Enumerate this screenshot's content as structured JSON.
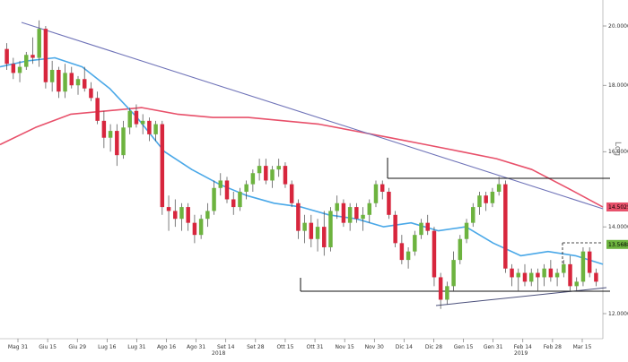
{
  "chart_data": {
    "type": "candlestick",
    "scale": "log",
    "scale_label": "Log",
    "ylim": [
      11.7,
      21.0
    ],
    "y_ticks": [
      {
        "label": "12.0000",
        "value": 12.0
      },
      {
        "label": "14.0000",
        "value": 14.0
      },
      {
        "label": "16.0000",
        "value": 16.0
      },
      {
        "label": "18.0000",
        "value": 18.0
      },
      {
        "label": "20.0000",
        "value": 20.0
      }
    ],
    "x_ticks": [
      "Mag 31",
      "Giu 15",
      "Giu 29",
      "Lug 16",
      "Lug 31",
      "Ago 16",
      "Ago 31",
      "Set 14",
      "Set 28",
      "Ott 15",
      "Ott 31",
      "Nov 15",
      "Nov 30",
      "Dic 14",
      "Dic 28",
      "Gen 15",
      "Gen 31",
      "Feb 14",
      "Feb 28",
      "Mar 15"
    ],
    "year_labels": [
      "2018",
      "2019"
    ],
    "colors": {
      "up": "#6db33f",
      "down": "#d7263d",
      "ma_short": "#4aa8e8",
      "ma_long": "#e8506a",
      "trendline": "#6f73b8",
      "channel": "#111111"
    },
    "series": [
      {
        "kind": "candles",
        "ohlc": [
          [
            19.2,
            19.4,
            18.5,
            18.7
          ],
          [
            18.7,
            18.9,
            18.2,
            18.4
          ],
          [
            18.4,
            18.8,
            18.1,
            18.6
          ],
          [
            18.6,
            19.1,
            18.5,
            19.0
          ],
          [
            19.0,
            19.6,
            18.7,
            18.9
          ],
          [
            18.9,
            20.2,
            18.6,
            19.9
          ],
          [
            19.9,
            20.0,
            17.9,
            18.1
          ],
          [
            18.1,
            18.8,
            17.8,
            18.5
          ],
          [
            18.5,
            18.6,
            17.6,
            17.8
          ],
          [
            17.8,
            18.7,
            17.6,
            18.4
          ],
          [
            18.4,
            18.6,
            17.9,
            18.0
          ],
          [
            18.0,
            18.3,
            17.7,
            18.2
          ],
          [
            18.2,
            18.6,
            17.8,
            17.9
          ],
          [
            17.9,
            18.1,
            17.5,
            17.6
          ],
          [
            17.6,
            17.8,
            16.8,
            16.9
          ],
          [
            16.9,
            17.2,
            16.1,
            16.4
          ],
          [
            16.4,
            16.8,
            16.0,
            16.6
          ],
          [
            16.6,
            16.8,
            15.6,
            15.9
          ],
          [
            15.9,
            16.9,
            15.8,
            16.7
          ],
          [
            16.7,
            17.3,
            16.5,
            17.2
          ],
          [
            17.2,
            17.4,
            16.7,
            16.8
          ],
          [
            16.8,
            17.1,
            16.5,
            16.9
          ],
          [
            16.9,
            17.0,
            16.3,
            16.5
          ],
          [
            16.5,
            16.9,
            16.3,
            16.8
          ],
          [
            16.8,
            16.9,
            14.3,
            14.5
          ],
          [
            14.5,
            14.8,
            13.9,
            14.4
          ],
          [
            14.4,
            14.7,
            14.0,
            14.2
          ],
          [
            14.2,
            14.6,
            13.9,
            14.5
          ],
          [
            14.5,
            14.6,
            13.9,
            14.1
          ],
          [
            14.1,
            14.3,
            13.6,
            13.8
          ],
          [
            13.8,
            14.3,
            13.7,
            14.2
          ],
          [
            14.2,
            14.6,
            14.0,
            14.4
          ],
          [
            14.4,
            15.2,
            14.3,
            15.0
          ],
          [
            15.0,
            15.4,
            14.8,
            15.2
          ],
          [
            15.2,
            15.3,
            14.6,
            14.7
          ],
          [
            14.7,
            14.9,
            14.3,
            14.5
          ],
          [
            14.5,
            15.0,
            14.4,
            14.9
          ],
          [
            14.9,
            15.2,
            14.7,
            15.1
          ],
          [
            15.1,
            15.5,
            14.9,
            15.4
          ],
          [
            15.4,
            15.8,
            15.2,
            15.6
          ],
          [
            15.6,
            15.8,
            15.1,
            15.2
          ],
          [
            15.2,
            15.6,
            15.0,
            15.5
          ],
          [
            15.5,
            15.8,
            15.3,
            15.6
          ],
          [
            15.6,
            15.7,
            15.0,
            15.1
          ],
          [
            15.1,
            15.2,
            14.5,
            14.6
          ],
          [
            14.6,
            14.7,
            13.7,
            13.9
          ],
          [
            13.9,
            14.3,
            13.6,
            14.1
          ],
          [
            14.1,
            14.3,
            13.5,
            13.7
          ],
          [
            13.7,
            14.2,
            13.4,
            14.0
          ],
          [
            14.0,
            14.4,
            13.3,
            13.5
          ],
          [
            13.5,
            14.5,
            13.4,
            14.4
          ],
          [
            14.4,
            14.8,
            14.2,
            14.6
          ],
          [
            14.6,
            14.7,
            14.0,
            14.1
          ],
          [
            14.1,
            14.6,
            13.9,
            14.5
          ],
          [
            14.5,
            14.6,
            14.1,
            14.2
          ],
          [
            14.2,
            14.5,
            13.9,
            14.3
          ],
          [
            14.3,
            14.7,
            14.1,
            14.6
          ],
          [
            14.6,
            15.2,
            14.5,
            15.1
          ],
          [
            15.1,
            15.2,
            14.7,
            14.9
          ],
          [
            14.9,
            15.0,
            14.2,
            14.3
          ],
          [
            14.3,
            14.4,
            13.5,
            13.6
          ],
          [
            13.6,
            13.8,
            13.1,
            13.2
          ],
          [
            13.2,
            13.5,
            13.0,
            13.4
          ],
          [
            13.4,
            13.9,
            13.3,
            13.8
          ],
          [
            13.8,
            14.2,
            13.7,
            14.1
          ],
          [
            14.1,
            14.3,
            13.8,
            13.9
          ],
          [
            13.9,
            14.0,
            12.6,
            12.8
          ],
          [
            12.8,
            12.9,
            12.1,
            12.3
          ],
          [
            12.3,
            12.7,
            12.2,
            12.6
          ],
          [
            12.6,
            13.4,
            12.5,
            13.2
          ],
          [
            13.2,
            13.8,
            13.1,
            13.7
          ],
          [
            13.7,
            14.2,
            13.6,
            14.1
          ],
          [
            14.1,
            14.6,
            14.0,
            14.5
          ],
          [
            14.5,
            14.9,
            14.3,
            14.8
          ],
          [
            14.8,
            14.9,
            14.4,
            14.6
          ],
          [
            14.6,
            15.0,
            14.5,
            14.9
          ],
          [
            14.9,
            15.3,
            14.8,
            15.1
          ],
          [
            15.1,
            15.2,
            12.9,
            13.0
          ],
          [
            13.0,
            13.1,
            12.6,
            12.8
          ],
          [
            12.8,
            13.0,
            12.5,
            12.9
          ],
          [
            12.9,
            13.1,
            12.6,
            12.7
          ],
          [
            12.7,
            13.0,
            12.6,
            12.9
          ],
          [
            12.9,
            13.0,
            12.5,
            12.8
          ],
          [
            12.8,
            13.1,
            12.6,
            13.0
          ],
          [
            13.0,
            13.2,
            12.7,
            12.8
          ],
          [
            12.8,
            13.0,
            12.6,
            12.9
          ],
          [
            12.9,
            13.2,
            12.8,
            13.1
          ],
          [
            13.1,
            13.3,
            12.5,
            12.6
          ],
          [
            12.6,
            12.8,
            12.5,
            12.7
          ],
          [
            12.7,
            13.5,
            12.6,
            13.4
          ],
          [
            13.4,
            13.5,
            12.8,
            12.9
          ],
          [
            12.9,
            13.0,
            12.6,
            12.7
          ]
        ]
      },
      {
        "kind": "moving_average",
        "name": "",
        "color": "#4aa8e8",
        "values": [
          18.6,
          18.8,
          18.9,
          18.6,
          17.9,
          17.0,
          16.0,
          15.5,
          15.1,
          14.8,
          14.6,
          14.5,
          14.3,
          14.2,
          14.0,
          14.1,
          13.9,
          14.0,
          13.6,
          13.3,
          13.4,
          13.3,
          13.1
        ]
      },
      {
        "kind": "moving_average",
        "name": "",
        "color": "#e8506a",
        "values": [
          16.2,
          16.7,
          17.1,
          17.2,
          17.3,
          17.1,
          17.0,
          17.0,
          16.9,
          16.8,
          16.6,
          16.4,
          16.2,
          16.0,
          15.8,
          15.5,
          15.0,
          14.5
        ]
      }
    ],
    "price_badges": [
      {
        "label": "14.5025",
        "value": 14.5025,
        "color": "#e8506a"
      },
      {
        "label": "13.5688",
        "value": 13.5688,
        "color": "#6db33f"
      }
    ],
    "legend": "none",
    "grid": false
  }
}
